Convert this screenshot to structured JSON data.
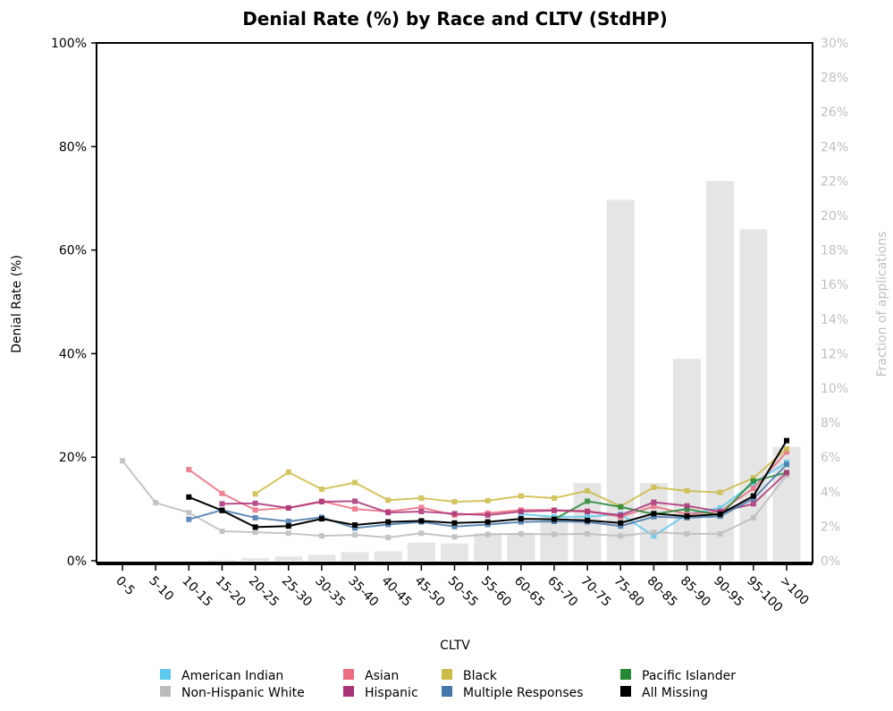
{
  "chart_data": {
    "type": "line",
    "title": "Denial Rate (%) by Race and CLTV (StdHP)",
    "xlabel": "CLTV",
    "ylabel": "Denial Rate (%)",
    "ylabel_right": "Fraction of applications",
    "ylim": [
      0,
      100
    ],
    "ylim_right": [
      0,
      30
    ],
    "yticks": [
      "0%",
      "20%",
      "40%",
      "60%",
      "80%",
      "100%"
    ],
    "yticks_right": [
      "0%",
      "2%",
      "4%",
      "6%",
      "8%",
      "10%",
      "12%",
      "14%",
      "16%",
      "18%",
      "20%",
      "22%",
      "24%",
      "26%",
      "28%",
      "30%"
    ],
    "grid": false,
    "legend_position": "bottom",
    "categories": [
      "0-5",
      "5-10",
      "10-15",
      "15-20",
      "20-25",
      "25-30",
      "30-35",
      "35-40",
      "40-45",
      "45-50",
      "50-55",
      "55-60",
      "60-65",
      "65-70",
      "70-75",
      "75-80",
      "80-85",
      "85-90",
      "90-95",
      "95-100",
      ">100"
    ],
    "bars": {
      "name": "Fraction of applications",
      "color": "#e5e5e5",
      "values": [
        0.0,
        0.0,
        0.0,
        0.05,
        0.15,
        0.25,
        0.35,
        0.5,
        0.55,
        1.05,
        1.0,
        1.6,
        1.6,
        2.6,
        4.5,
        20.9,
        4.5,
        11.7,
        22.0,
        19.2,
        6.6
      ]
    },
    "series": [
      {
        "name": "American Indian",
        "color": "#5bc8ed",
        "values": [
          null,
          null,
          null,
          null,
          null,
          null,
          null,
          null,
          null,
          null,
          null,
          null,
          9.0,
          8.5,
          8.5,
          9.0,
          4.8,
          9.0,
          10.2,
          15.0,
          19.0
        ]
      },
      {
        "name": "Asian",
        "color": "#ec6d7f",
        "values": [
          null,
          null,
          17.6,
          13.0,
          9.8,
          10.2,
          11.5,
          10.0,
          9.5,
          10.3,
          8.8,
          9.2,
          9.8,
          9.8,
          9.6,
          8.5,
          10.5,
          9.0,
          9.5,
          14.0,
          21.0
        ]
      },
      {
        "name": "Black",
        "color": "#ccbb44",
        "values": [
          null,
          null,
          null,
          null,
          12.9,
          17.1,
          13.8,
          15.1,
          11.7,
          12.1,
          11.4,
          11.6,
          12.5,
          12.1,
          13.5,
          10.5,
          14.2,
          13.5,
          13.2,
          16.0,
          21.6
        ]
      },
      {
        "name": "Pacific Islander",
        "color": "#228833",
        "values": [
          null,
          null,
          null,
          null,
          null,
          null,
          null,
          null,
          null,
          null,
          null,
          null,
          null,
          8.0,
          11.5,
          10.4,
          9.0,
          10.0,
          8.8,
          15.4,
          17.0
        ]
      },
      {
        "name": "Non-Hispanic White",
        "color": "#bbbbbb",
        "values": [
          19.3,
          11.2,
          9.3,
          5.7,
          5.5,
          5.3,
          4.8,
          5.0,
          4.5,
          5.3,
          4.6,
          5.1,
          5.2,
          5.1,
          5.2,
          4.8,
          5.5,
          5.2,
          5.2,
          8.3,
          16.5
        ]
      },
      {
        "name": "Hispanic",
        "color": "#aa3377",
        "values": [
          null,
          null,
          null,
          11.0,
          11.1,
          10.2,
          11.4,
          11.5,
          9.3,
          9.5,
          9.1,
          8.8,
          9.5,
          9.7,
          9.5,
          8.8,
          11.3,
          10.6,
          9.5,
          11.0,
          17.0
        ]
      },
      {
        "name": "Multiple Responses",
        "color": "#4477aa",
        "values": [
          null,
          null,
          8.0,
          9.8,
          8.3,
          7.6,
          8.4,
          6.3,
          7.0,
          7.5,
          6.6,
          7.0,
          7.5,
          7.6,
          7.5,
          6.7,
          8.5,
          8.3,
          8.6,
          12.0,
          18.6
        ]
      },
      {
        "name": "All Missing",
        "color": "#000000",
        "values": [
          null,
          null,
          12.3,
          9.7,
          6.5,
          6.7,
          8.1,
          6.9,
          7.5,
          7.7,
          7.3,
          7.5,
          8.1,
          8.0,
          7.8,
          7.3,
          9.1,
          8.6,
          9.0,
          12.5,
          23.2
        ]
      }
    ]
  }
}
